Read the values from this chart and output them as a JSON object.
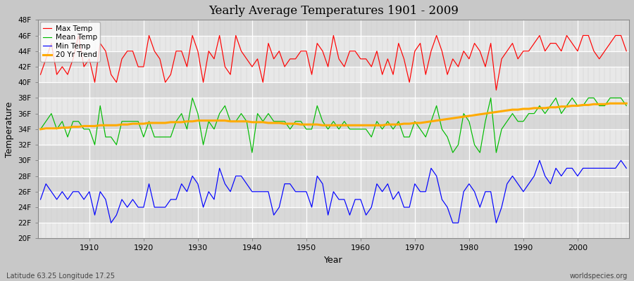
{
  "title": "Yearly Average Temperatures 1901 - 2009",
  "xlabel": "Year",
  "ylabel": "Temperature",
  "subtitle_left": "Latitude 63.25 Longitude 17.25",
  "subtitle_right": "worldspecies.org",
  "ylim": [
    20,
    48
  ],
  "yticks": [
    20,
    22,
    24,
    26,
    28,
    30,
    32,
    34,
    36,
    38,
    40,
    42,
    44,
    46,
    48
  ],
  "ytick_labels": [
    "20F",
    "22F",
    "24F",
    "26F",
    "28F",
    "30F",
    "32F",
    "34F",
    "36F",
    "38F",
    "40F",
    "42F",
    "44F",
    "46F",
    "48F"
  ],
  "start_year": 1901,
  "end_year": 2009,
  "colors": {
    "max_temp": "#ff0000",
    "mean_temp": "#00bb00",
    "min_temp": "#0000ff",
    "trend": "#ffaa00",
    "fig_bg": "#c8c8c8",
    "plot_bg": "#e0e0e0",
    "grid_major": "#ffffff",
    "grid_minor": "#d8d8d8"
  },
  "legend_labels": [
    "Max Temp",
    "Mean Temp",
    "Min Temp",
    "20 Yr Trend"
  ],
  "max_temp": [
    41,
    43,
    45,
    41,
    42,
    41,
    43,
    46,
    42,
    43,
    40,
    45,
    44,
    41,
    40,
    43,
    44,
    44,
    42,
    42,
    46,
    44,
    43,
    40,
    41,
    44,
    44,
    42,
    46,
    44,
    40,
    44,
    43,
    46,
    42,
    41,
    46,
    44,
    43,
    42,
    43,
    40,
    45,
    43,
    44,
    42,
    43,
    43,
    44,
    44,
    41,
    45,
    44,
    42,
    46,
    43,
    42,
    44,
    44,
    43,
    43,
    42,
    44,
    41,
    43,
    41,
    45,
    43,
    40,
    44,
    45,
    41,
    44,
    46,
    44,
    41,
    43,
    42,
    44,
    43,
    45,
    44,
    42,
    45,
    39,
    43,
    44,
    45,
    43,
    44,
    44,
    45,
    46,
    44,
    45,
    45,
    44,
    46,
    45,
    44,
    46,
    46,
    44,
    43,
    44,
    45,
    46,
    46,
    44
  ],
  "mean_temp": [
    34,
    35,
    36,
    34,
    35,
    33,
    35,
    35,
    34,
    34,
    32,
    37,
    33,
    33,
    32,
    35,
    35,
    35,
    35,
    33,
    35,
    33,
    33,
    33,
    33,
    35,
    36,
    34,
    38,
    36,
    32,
    35,
    34,
    36,
    37,
    35,
    35,
    36,
    35,
    31,
    36,
    35,
    36,
    35,
    35,
    35,
    34,
    35,
    35,
    34,
    34,
    37,
    35,
    34,
    35,
    34,
    35,
    34,
    34,
    34,
    34,
    33,
    35,
    34,
    35,
    34,
    35,
    33,
    33,
    35,
    34,
    33,
    35,
    37,
    34,
    33,
    31,
    32,
    36,
    35,
    32,
    31,
    35,
    38,
    31,
    34,
    35,
    36,
    35,
    35,
    36,
    36,
    37,
    36,
    37,
    38,
    36,
    37,
    38,
    37,
    37,
    38,
    38,
    37,
    37,
    38,
    38,
    38,
    37
  ],
  "min_temp": [
    25,
    27,
    26,
    25,
    26,
    25,
    26,
    26,
    25,
    26,
    23,
    26,
    25,
    22,
    23,
    25,
    24,
    25,
    24,
    24,
    27,
    24,
    24,
    24,
    25,
    25,
    27,
    26,
    28,
    27,
    24,
    26,
    25,
    29,
    27,
    26,
    28,
    28,
    27,
    26,
    26,
    26,
    26,
    23,
    24,
    27,
    27,
    26,
    26,
    26,
    24,
    28,
    27,
    23,
    26,
    25,
    25,
    23,
    25,
    25,
    23,
    24,
    27,
    26,
    27,
    25,
    26,
    24,
    24,
    27,
    26,
    26,
    29,
    28,
    25,
    24,
    22,
    22,
    26,
    27,
    26,
    24,
    26,
    26,
    22,
    24,
    27,
    28,
    27,
    26,
    27,
    28,
    30,
    28,
    27,
    29,
    28,
    29,
    29,
    28,
    29,
    29,
    29,
    29,
    29,
    29,
    29,
    30,
    29
  ],
  "trend": [
    34.0,
    34.1,
    34.1,
    34.1,
    34.2,
    34.2,
    34.3,
    34.3,
    34.4,
    34.4,
    34.4,
    34.5,
    34.5,
    34.5,
    34.5,
    34.6,
    34.6,
    34.7,
    34.7,
    34.7,
    34.8,
    34.8,
    34.8,
    34.8,
    34.9,
    34.9,
    34.9,
    35.0,
    35.0,
    35.1,
    35.1,
    35.1,
    35.1,
    35.1,
    35.1,
    35.0,
    35.0,
    35.0,
    35.0,
    34.9,
    34.9,
    34.9,
    34.8,
    34.8,
    34.8,
    34.7,
    34.7,
    34.7,
    34.6,
    34.6,
    34.6,
    34.6,
    34.5,
    34.5,
    34.5,
    34.5,
    34.5,
    34.5,
    34.5,
    34.5,
    34.5,
    34.5,
    34.5,
    34.5,
    34.6,
    34.6,
    34.6,
    34.7,
    34.7,
    34.8,
    34.8,
    34.9,
    35.0,
    35.1,
    35.2,
    35.3,
    35.4,
    35.5,
    35.6,
    35.7,
    35.8,
    35.9,
    36.0,
    36.1,
    36.2,
    36.3,
    36.4,
    36.5,
    36.5,
    36.6,
    36.6,
    36.7,
    36.7,
    36.7,
    36.8,
    36.8,
    36.9,
    36.9,
    37.0,
    37.0,
    37.1,
    37.1,
    37.2,
    37.2,
    37.2,
    37.3,
    37.3,
    37.3,
    37.3
  ]
}
